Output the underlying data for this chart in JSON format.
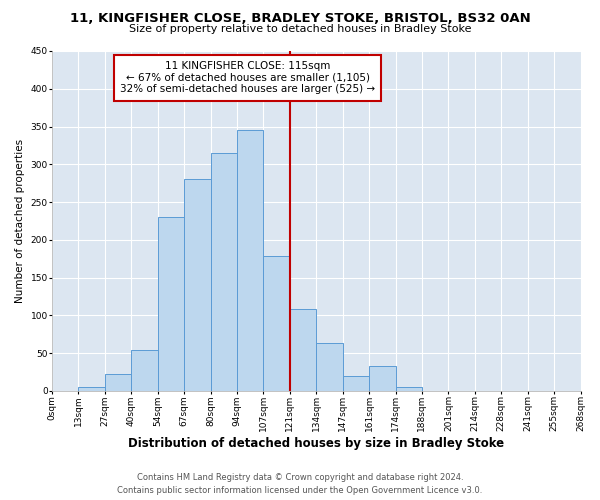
{
  "title": "11, KINGFISHER CLOSE, BRADLEY STOKE, BRISTOL, BS32 0AN",
  "subtitle": "Size of property relative to detached houses in Bradley Stoke",
  "xlabel": "Distribution of detached houses by size in Bradley Stoke",
  "ylabel": "Number of detached properties",
  "bar_labels": [
    "0sqm",
    "13sqm",
    "27sqm",
    "40sqm",
    "54sqm",
    "67sqm",
    "80sqm",
    "94sqm",
    "107sqm",
    "121sqm",
    "134sqm",
    "147sqm",
    "161sqm",
    "174sqm",
    "188sqm",
    "201sqm",
    "214sqm",
    "228sqm",
    "241sqm",
    "255sqm",
    "268sqm"
  ],
  "bar_values": [
    0,
    5,
    22,
    54,
    230,
    280,
    315,
    345,
    178,
    108,
    63,
    20,
    33,
    5,
    0,
    0,
    0,
    0,
    0,
    0
  ],
  "bar_color": "#bdd7ee",
  "bar_edge_color": "#5b9bd5",
  "vline_x": 9,
  "vline_color": "#c00000",
  "annotation_title": "11 KINGFISHER CLOSE: 115sqm",
  "annotation_line1": "← 67% of detached houses are smaller (1,105)",
  "annotation_line2": "32% of semi-detached houses are larger (525) →",
  "annotation_box_color": "#ffffff",
  "annotation_box_edge": "#c00000",
  "ylim": [
    0,
    450
  ],
  "yticks": [
    0,
    50,
    100,
    150,
    200,
    250,
    300,
    350,
    400,
    450
  ],
  "bg_color": "#dce6f1",
  "fig_bg_color": "#ffffff",
  "footer1": "Contains HM Land Registry data © Crown copyright and database right 2024.",
  "footer2": "Contains public sector information licensed under the Open Government Licence v3.0.",
  "title_fontsize": 9.5,
  "subtitle_fontsize": 8,
  "xlabel_fontsize": 8.5,
  "ylabel_fontsize": 7.5,
  "tick_fontsize": 6.5,
  "annotation_fontsize": 7.5,
  "footer_fontsize": 6
}
